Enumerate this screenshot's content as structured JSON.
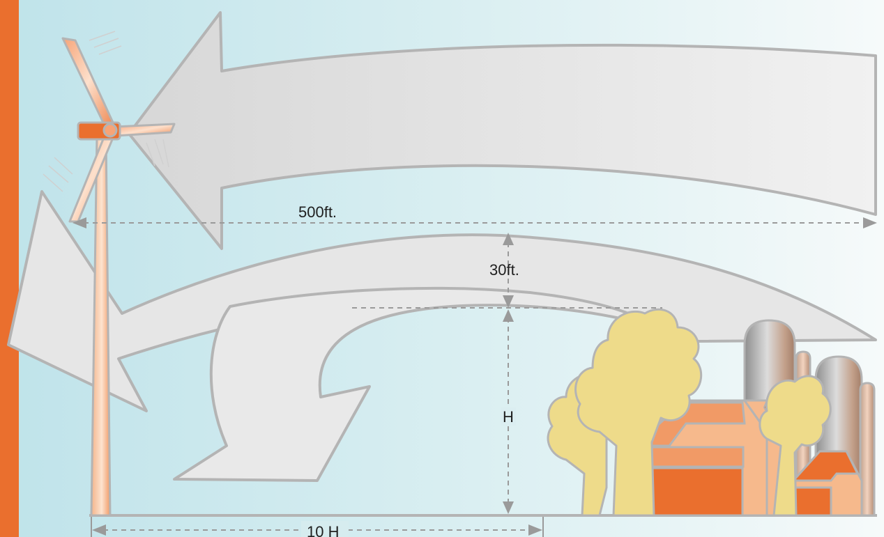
{
  "labels": {
    "width_500ft": "500ft.",
    "clearance_30ft": "30ft.",
    "height_h": "H",
    "distance_10h": "10 H"
  },
  "colors": {
    "accent_orange": "#ea6f2e",
    "sky_left": "#bfe3ea",
    "sky_right": "#f6fafa",
    "arrow_fill": "#e3e3e3",
    "arrow_stroke": "#b4b4b4",
    "tree_fill": "#eedb8a",
    "barn_orange": "#ea6f2e",
    "barn_peach": "#f6b98c"
  },
  "icons": {
    "turbine": "wind-turbine-icon",
    "tree": "tree-icon",
    "barn": "barn-icon",
    "silo": "silo-icon"
  }
}
